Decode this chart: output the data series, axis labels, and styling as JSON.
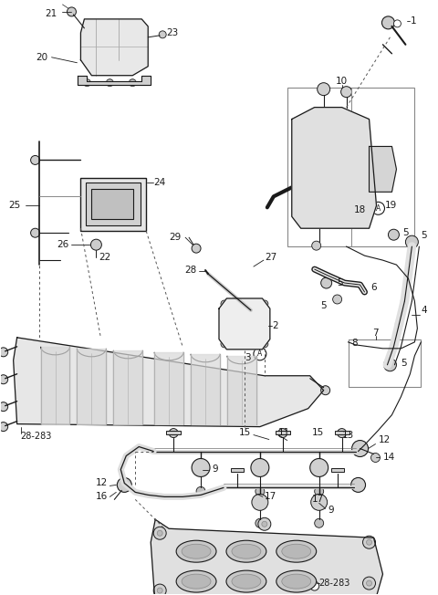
{
  "bg_color": "#ffffff",
  "line_color": "#1a1a1a",
  "fig_width": 4.8,
  "fig_height": 6.52,
  "dpi": 100
}
